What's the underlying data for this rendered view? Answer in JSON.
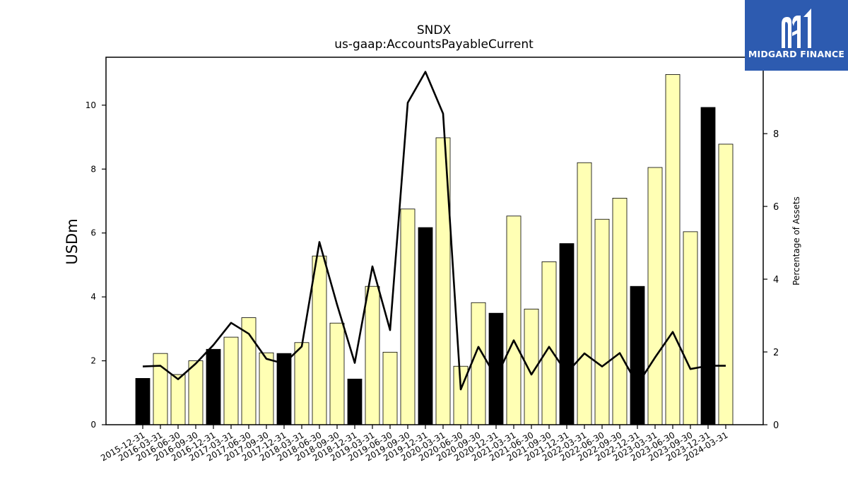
{
  "chart_data": {
    "type": "bar",
    "title": "SNDX",
    "subtitle": "us-gaap:AccountsPayableCurrent",
    "ylabel": "USDm",
    "y2label": "Percentage of Assets",
    "ylim": [
      0,
      11.5
    ],
    "y2lim": [
      0,
      10.1
    ],
    "yticks": [
      0,
      2,
      4,
      6,
      8,
      10
    ],
    "y2ticks": [
      0,
      2,
      4,
      6,
      8
    ],
    "categories": [
      "2015-12-31",
      "2016-03-31",
      "2016-06-30",
      "2016-09-30",
      "2016-12-31",
      "2017-03-31",
      "2017-06-30",
      "2017-09-30",
      "2017-12-31",
      "2018-03-31",
      "2018-06-30",
      "2018-09-30",
      "2018-12-31",
      "2019-03-31",
      "2019-06-30",
      "2019-09-30",
      "2019-12-31",
      "2020-03-31",
      "2020-06-30",
      "2020-09-30",
      "2020-12-31",
      "2021-03-31",
      "2021-06-30",
      "2021-09-30",
      "2021-12-31",
      "2022-03-31",
      "2022-06-30",
      "2022-09-30",
      "2022-12-31",
      "2023-03-31",
      "2023-06-30",
      "2023-09-30",
      "2023-12-31",
      "2024-03-31"
    ],
    "series": [
      {
        "type": "bar",
        "axis": "left",
        "values": [
          1.45,
          2.23,
          1.57,
          2.0,
          2.36,
          2.74,
          3.35,
          2.25,
          2.23,
          2.57,
          5.28,
          3.18,
          1.43,
          4.33,
          2.27,
          6.75,
          6.17,
          8.98,
          1.83,
          3.82,
          3.49,
          6.53,
          3.62,
          5.1,
          5.67,
          8.2,
          6.43,
          7.09,
          4.33,
          8.05,
          10.96,
          6.04,
          9.93,
          8.78
        ],
        "fill_year_end": "#000000",
        "fill_other": "#ffffb4"
      },
      {
        "type": "line",
        "axis": "right",
        "color": "#000000",
        "values": [
          1.6,
          1.62,
          1.25,
          1.68,
          2.19,
          2.8,
          2.5,
          1.81,
          1.68,
          2.15,
          5.02,
          3.3,
          1.7,
          4.35,
          2.6,
          8.85,
          9.7,
          8.55,
          0.97,
          2.14,
          1.3,
          2.32,
          1.38,
          2.14,
          1.42,
          1.96,
          1.6,
          1.97,
          1.1,
          1.85,
          2.55,
          1.53,
          1.62,
          1.62
        ]
      }
    ]
  },
  "logo": {
    "text": "MIDGARD FINANCE",
    "background": "#2d5bb0",
    "icon": "midgard-m-logo-icon"
  }
}
